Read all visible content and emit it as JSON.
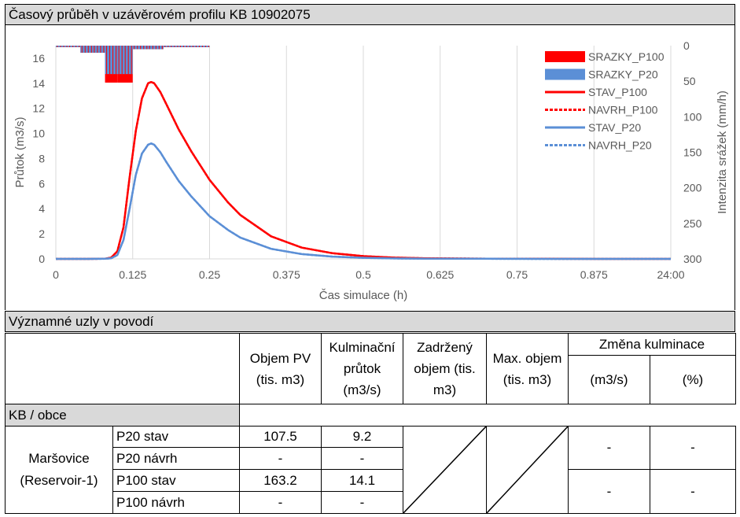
{
  "chart_title": "Časový průběh v uzávěrovém profilu KB 10902075",
  "chart_data": {
    "type": "line",
    "xlabel": "Čas simulace (h)",
    "ylabel": "Průtok (m3/s)",
    "y2label": "Intenzita srážek (mm/h)",
    "x_ticks": [
      "0",
      "0.125",
      "0.25",
      "0.375",
      "0.5",
      "0.625",
      "0.75",
      "0.875",
      "24:00"
    ],
    "xlim": [
      0,
      1
    ],
    "ylim": [
      0,
      17
    ],
    "y_ticks": [
      0,
      2,
      4,
      6,
      8,
      10,
      12,
      14,
      16
    ],
    "y2lim": [
      0,
      300
    ],
    "y2_ticks": [
      0,
      50,
      100,
      150,
      200,
      250,
      300
    ],
    "y2_inverted": true,
    "grid": "vertical",
    "legend_position": "top-right",
    "colors": {
      "red": "#ff0000",
      "blue": "#5b8fd6"
    },
    "legend": [
      {
        "label": "SRAZKY_P100",
        "type": "bar",
        "color": "#ff0000"
      },
      {
        "label": "SRAZKY_P20",
        "type": "bar",
        "color": "#5b8fd6"
      },
      {
        "label": "STAV_P100",
        "type": "line",
        "color": "#ff0000",
        "dash": false
      },
      {
        "label": "NAVRH_P100",
        "type": "line",
        "color": "#ff0000",
        "dash": true
      },
      {
        "label": "STAV_P20",
        "type": "line",
        "color": "#5b8fd6",
        "dash": false
      },
      {
        "label": "NAVRH_P20",
        "type": "line",
        "color": "#5b8fd6",
        "dash": true
      }
    ],
    "rain_series": [
      {
        "name": "SRAZKY_P100",
        "axis": "y2",
        "bins": [
          [
            0,
            0.02,
            2
          ],
          [
            0.02,
            0.04,
            2
          ],
          [
            0.04,
            0.06,
            10
          ],
          [
            0.06,
            0.08,
            10
          ],
          [
            0.08,
            0.1,
            52
          ],
          [
            0.1,
            0.125,
            52
          ],
          [
            0.125,
            0.15,
            5
          ],
          [
            0.15,
            0.175,
            5
          ],
          [
            0.175,
            0.2,
            2
          ],
          [
            0.2,
            0.25,
            2
          ]
        ]
      },
      {
        "name": "SRAZKY_P20",
        "axis": "y2",
        "bins": [
          [
            0,
            0.02,
            2
          ],
          [
            0.02,
            0.04,
            2
          ],
          [
            0.04,
            0.06,
            10
          ],
          [
            0.06,
            0.08,
            10
          ],
          [
            0.08,
            0.1,
            40
          ],
          [
            0.1,
            0.125,
            40
          ],
          [
            0.125,
            0.15,
            5
          ],
          [
            0.15,
            0.175,
            5
          ],
          [
            0.175,
            0.2,
            2
          ],
          [
            0.2,
            0.25,
            2
          ]
        ]
      }
    ],
    "series": [
      {
        "name": "STAV_P100",
        "x": [
          0,
          0.05,
          0.08,
          0.09,
          0.1,
          0.11,
          0.12,
          0.13,
          0.14,
          0.15,
          0.155,
          0.16,
          0.17,
          0.18,
          0.2,
          0.22,
          0.25,
          0.28,
          0.3,
          0.35,
          0.4,
          0.45,
          0.5,
          0.55,
          0.6,
          0.7,
          0.8,
          0.9,
          1.0
        ],
        "y": [
          0,
          0,
          0.02,
          0.1,
          0.6,
          2.5,
          6.5,
          10.2,
          12.8,
          14.0,
          14.1,
          14.0,
          13.3,
          12.3,
          10.3,
          8.6,
          6.3,
          4.5,
          3.5,
          1.8,
          0.9,
          0.45,
          0.22,
          0.1,
          0.05,
          0.02,
          0.01,
          0,
          0
        ]
      },
      {
        "name": "NAVRH_P100",
        "x": [
          0,
          0.05,
          0.08,
          0.09,
          0.1,
          0.11,
          0.12,
          0.13,
          0.14,
          0.15,
          0.155,
          0.16,
          0.17,
          0.18,
          0.2,
          0.22,
          0.25,
          0.28,
          0.3,
          0.35,
          0.4,
          0.45,
          0.5,
          0.55,
          0.6,
          0.7,
          0.8,
          0.9,
          1.0
        ],
        "y": [
          0,
          0,
          0.02,
          0.1,
          0.6,
          2.5,
          6.5,
          10.2,
          12.8,
          14.0,
          14.1,
          14.0,
          13.3,
          12.3,
          10.3,
          8.6,
          6.3,
          4.5,
          3.5,
          1.8,
          0.9,
          0.45,
          0.22,
          0.1,
          0.05,
          0.02,
          0.01,
          0,
          0
        ]
      },
      {
        "name": "STAV_P20",
        "x": [
          0,
          0.05,
          0.08,
          0.09,
          0.1,
          0.11,
          0.12,
          0.13,
          0.14,
          0.15,
          0.155,
          0.16,
          0.17,
          0.18,
          0.2,
          0.22,
          0.25,
          0.28,
          0.3,
          0.35,
          0.4,
          0.45,
          0.5,
          0.55,
          0.6,
          0.7,
          0.8,
          0.9,
          1.0
        ],
        "y": [
          0,
          0,
          0.01,
          0.05,
          0.3,
          1.5,
          4.0,
          6.7,
          8.4,
          9.1,
          9.2,
          9.1,
          8.5,
          7.7,
          6.2,
          5.0,
          3.4,
          2.3,
          1.7,
          0.8,
          0.38,
          0.18,
          0.09,
          0.04,
          0.02,
          0.01,
          0,
          0,
          0
        ]
      },
      {
        "name": "NAVRH_P20",
        "x": [
          0,
          0.05,
          0.08,
          0.09,
          0.1,
          0.11,
          0.12,
          0.13,
          0.14,
          0.15,
          0.155,
          0.16,
          0.17,
          0.18,
          0.2,
          0.22,
          0.25,
          0.28,
          0.3,
          0.35,
          0.4,
          0.45,
          0.5,
          0.55,
          0.6,
          0.7,
          0.8,
          0.9,
          1.0
        ],
        "y": [
          0,
          0,
          0.01,
          0.05,
          0.3,
          1.5,
          4.0,
          6.7,
          8.4,
          9.1,
          9.2,
          9.1,
          8.5,
          7.7,
          6.2,
          5.0,
          3.4,
          2.3,
          1.7,
          0.8,
          0.38,
          0.18,
          0.09,
          0.04,
          0.02,
          0.01,
          0,
          0,
          0
        ]
      }
    ]
  },
  "table": {
    "title": "Významné uzly v povodí",
    "headers": {
      "objem_pv": "Objem PV (tis. m3)",
      "kulminacni_prutok": "Kulminační průtok (m3/s)",
      "zadrzeny_objem": "Zadržený objem (tis. m3)",
      "max_objem": "Max. objem (tis. m3)",
      "zmena_kulminace": "Změna kulminace",
      "zmena_m3s": "(m3/s)",
      "zmena_pct": "(%)"
    },
    "section_label": "KB / obce",
    "node_name": "Maršovice",
    "node_sub": "(Reservoir-1)",
    "rows": [
      {
        "label": "P20 stav",
        "objem": "107.5",
        "kulm": "9.2"
      },
      {
        "label": "P20 návrh",
        "objem": "-",
        "kulm": "-"
      },
      {
        "label": "P100 stav",
        "objem": "163.2",
        "kulm": "14.1"
      },
      {
        "label": "P100 návrh",
        "objem": "-",
        "kulm": "-"
      }
    ],
    "change_p20": {
      "m3s": "-",
      "pct": "-"
    },
    "change_p100": {
      "m3s": "-",
      "pct": "-"
    }
  }
}
